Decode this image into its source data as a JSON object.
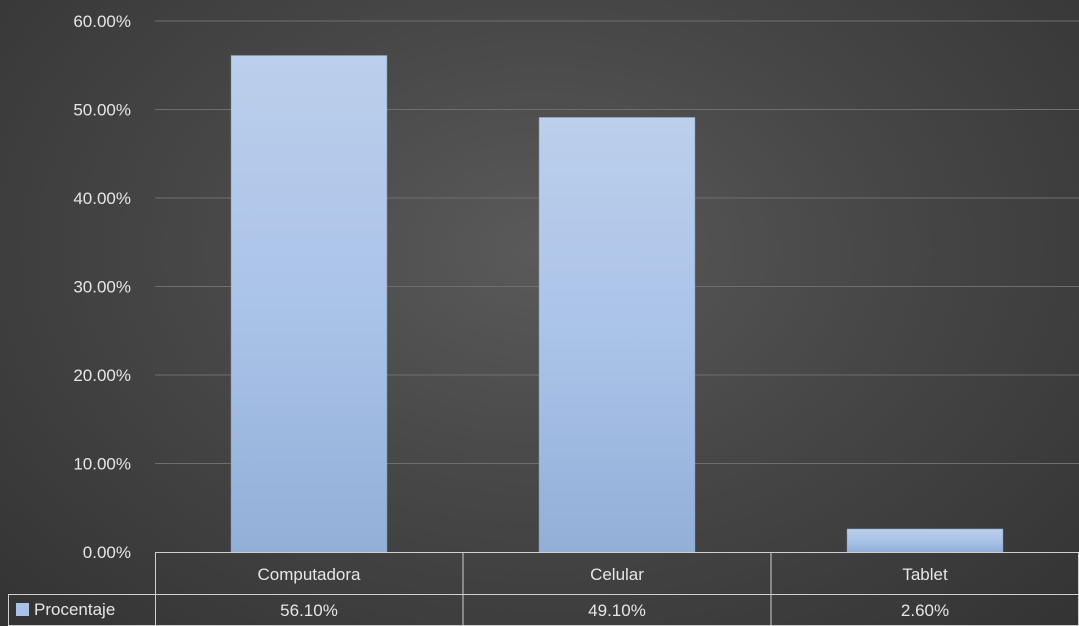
{
  "chart_data": {
    "type": "bar",
    "categories": [
      "Computadora",
      "Celular",
      "Tablet"
    ],
    "series": [
      {
        "name": "Procentaje",
        "values": [
          56.1,
          49.1,
          2.6
        ],
        "value_labels": [
          "56.10%",
          "49.10%",
          "2.60%"
        ]
      }
    ],
    "ylim": [
      0,
      60
    ],
    "yticks": [
      0,
      10,
      20,
      30,
      40,
      50,
      60
    ],
    "ytick_labels": [
      "0.00%",
      "10.00%",
      "20.00%",
      "30.00%",
      "40.00%",
      "50.00%",
      "60.00%"
    ],
    "grid": true,
    "data_table": true,
    "colors": {
      "bar": "#a9c3e8",
      "gridline": "#6e6e6e",
      "table_border": "#cfcfcf",
      "text": "#e6e6e6"
    }
  }
}
